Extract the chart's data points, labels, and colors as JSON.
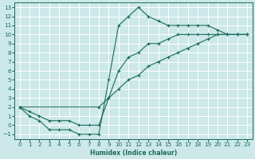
{
  "bg_color": "#cce8e8",
  "grid_color": "#ffffff",
  "line_color": "#1a6b5a",
  "xlabel": "Humidex (Indice chaleur)",
  "xlim": [
    -0.5,
    23.5
  ],
  "ylim": [
    -1.5,
    13.5
  ],
  "xticks": [
    0,
    1,
    2,
    3,
    4,
    5,
    6,
    7,
    8,
    9,
    10,
    11,
    12,
    13,
    14,
    15,
    16,
    17,
    18,
    19,
    20,
    21,
    22,
    23
  ],
  "yticks": [
    -1,
    0,
    1,
    2,
    3,
    4,
    5,
    6,
    7,
    8,
    9,
    10,
    11,
    12,
    13
  ],
  "line1_x": [
    0,
    1,
    2,
    3,
    4,
    5,
    6,
    7,
    8,
    9,
    10,
    11,
    12,
    13,
    14,
    15,
    16,
    17,
    18,
    19,
    20,
    21,
    22,
    23
  ],
  "line1_y": [
    2,
    1,
    0.5,
    -0.5,
    -0.5,
    -0.5,
    -1,
    -1,
    -1,
    5,
    11,
    12,
    13,
    12,
    11.5,
    11,
    11,
    11,
    11,
    11,
    10.5,
    10,
    10,
    10
  ],
  "line2_x": [
    0,
    8,
    9,
    10,
    11,
    12,
    13,
    14,
    15,
    16,
    17,
    18,
    19,
    20,
    21,
    22,
    23
  ],
  "line2_y": [
    2,
    2,
    3,
    4,
    5,
    5.5,
    6.5,
    7,
    7.5,
    8,
    8.5,
    9,
    9.5,
    10,
    10,
    10,
    10
  ],
  "line3_x": [
    0,
    1,
    2,
    3,
    4,
    5,
    6,
    7,
    8,
    9,
    10,
    11,
    12,
    13,
    14,
    15,
    16,
    17,
    18,
    19,
    20,
    21,
    22,
    23
  ],
  "line3_y": [
    2,
    1.5,
    1,
    0.5,
    0.5,
    0.5,
    0,
    0,
    0,
    3,
    6,
    7.5,
    8,
    9,
    9,
    9.5,
    10,
    10,
    10,
    10,
    10,
    10,
    10,
    10
  ]
}
